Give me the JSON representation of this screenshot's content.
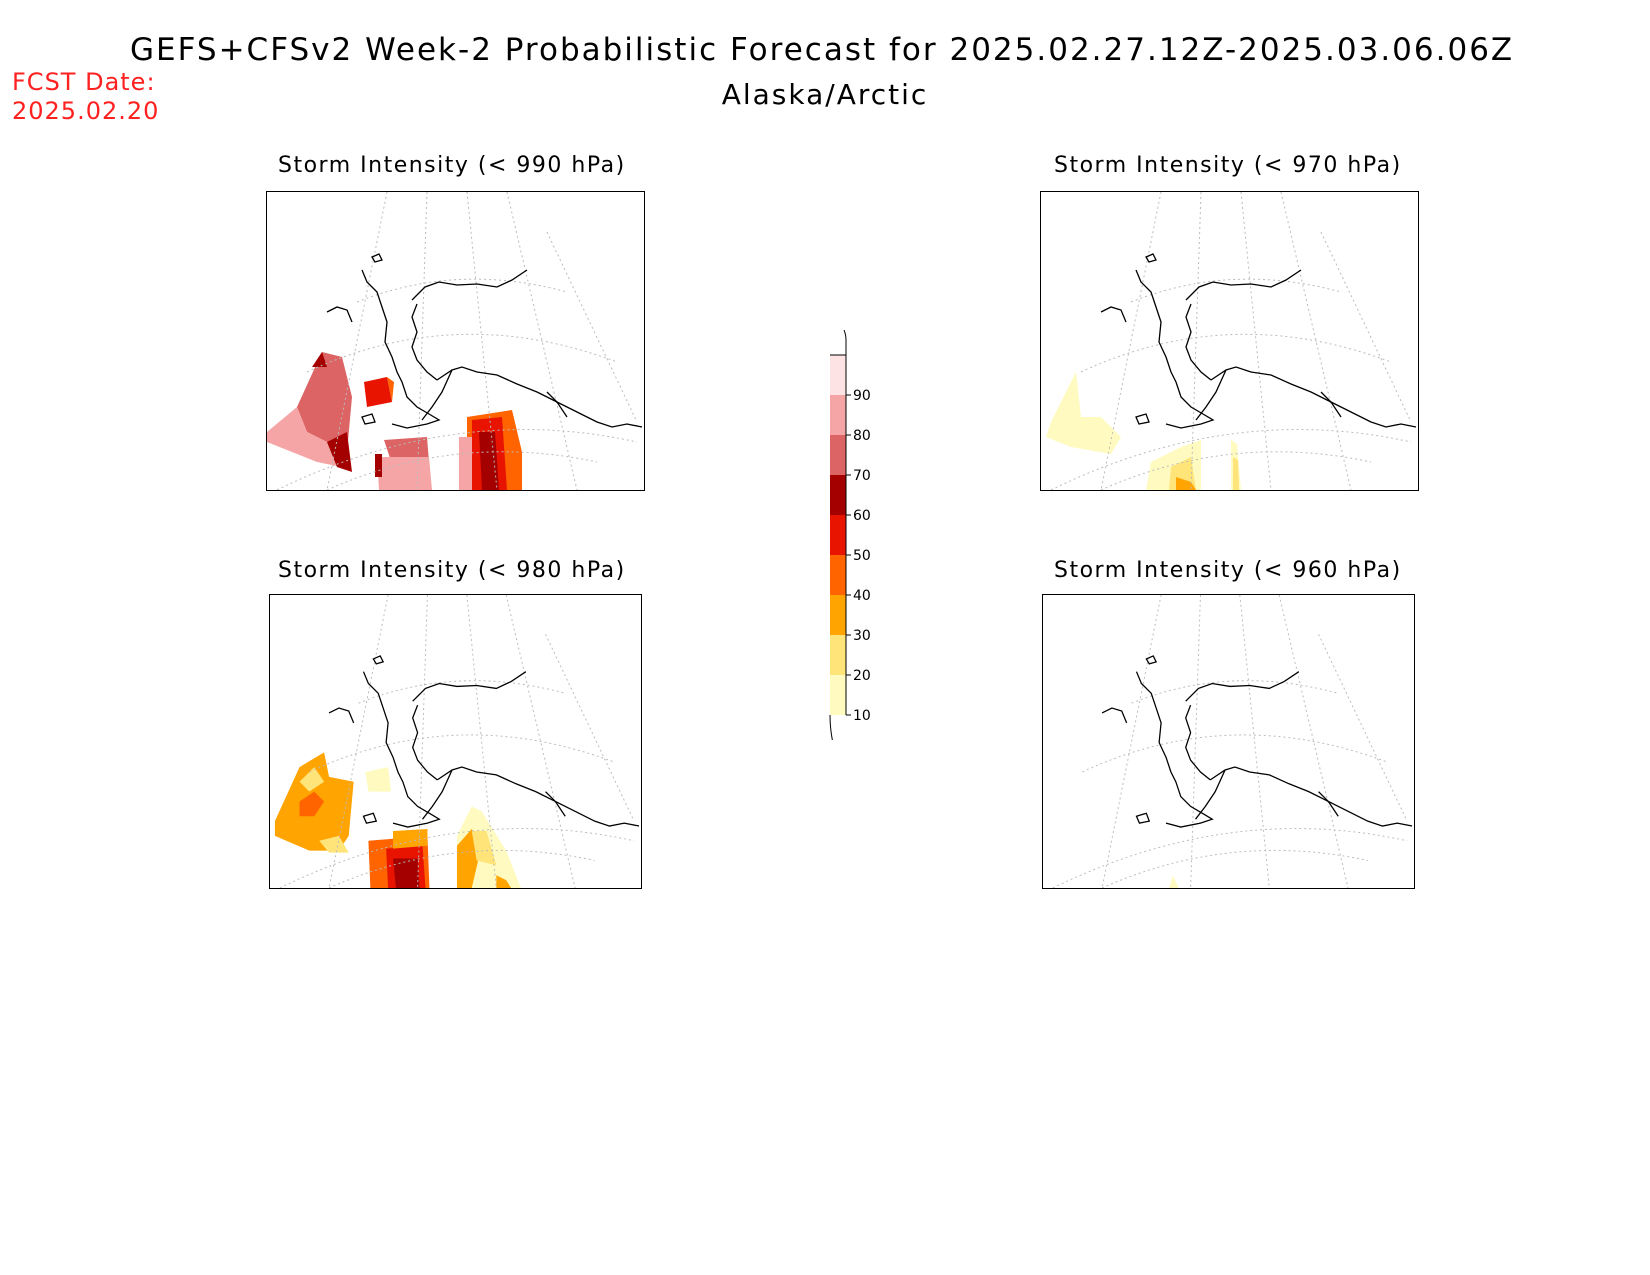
{
  "header": {
    "title": "GEFS+CFSv2 Week-2 Probabilistic Forecast for 2025.02.27.12Z-2025.03.06.06Z",
    "region": "Alaska/Arctic",
    "fcst_label": "FCST Date:",
    "fcst_date": "2025.02.20"
  },
  "panels": [
    {
      "id": "p990",
      "title": "Storm Intensity (< 990 hPa)"
    },
    {
      "id": "p970",
      "title": "Storm Intensity (< 970 hPa)"
    },
    {
      "id": "p980",
      "title": "Storm Intensity (< 980 hPa)"
    },
    {
      "id": "p960",
      "title": "Storm Intensity (< 960 hPa)"
    }
  ],
  "colorbar": {
    "levels": [
      "10",
      "20",
      "30",
      "40",
      "50",
      "60",
      "70",
      "80",
      "90"
    ],
    "colors": [
      "#fffbc0",
      "#ffe47a",
      "#ffa400",
      "#ff6400",
      "#e81400",
      "#a50000",
      "#dc6464",
      "#f5a5a5",
      "#fde3e3"
    ]
  }
}
